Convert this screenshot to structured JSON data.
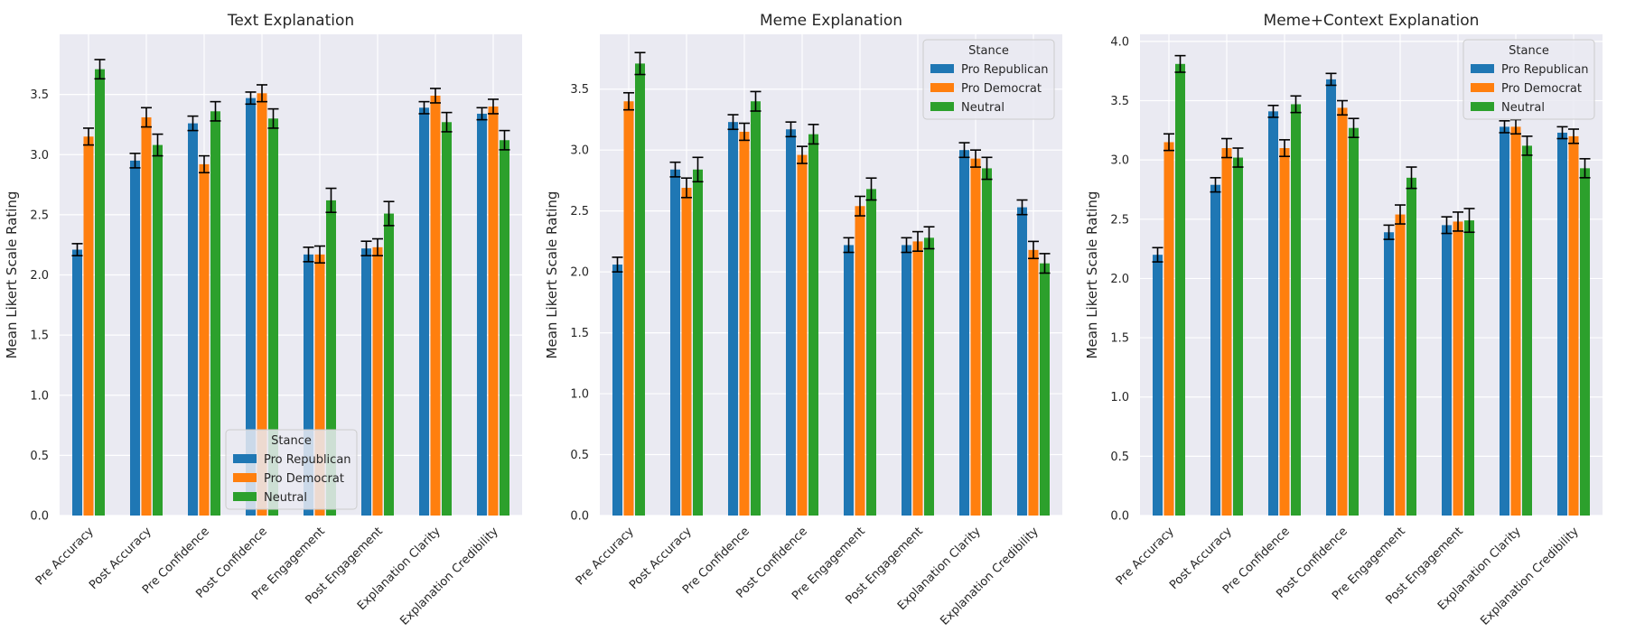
{
  "chart_data": [
    {
      "type": "bar",
      "title": "Text Explanation",
      "ylabel": "Mean Likert Scale Rating",
      "xlabel": "",
      "ylim": [
        0,
        4.0
      ],
      "yticks": [
        0.0,
        0.5,
        1.0,
        1.5,
        2.0,
        2.5,
        3.0,
        3.5
      ],
      "grid": true,
      "legend_title": "Stance",
      "legend_position": "lower-right",
      "categories": [
        "Pre Accuracy",
        "Post Accuracy",
        "Pre Confidence",
        "Post Confidence",
        "Pre Engagement",
        "Post Engagement",
        "Explanation Clarity",
        "Explanation Credibility"
      ],
      "series": [
        {
          "name": "Pro Republican",
          "color": "#1f77b4",
          "values": [
            2.21,
            2.95,
            3.26,
            3.47,
            2.17,
            2.22,
            3.39,
            3.34
          ],
          "errors": [
            0.05,
            0.06,
            0.06,
            0.05,
            0.06,
            0.06,
            0.05,
            0.05
          ]
        },
        {
          "name": "Pro Democrat",
          "color": "#ff7f0e",
          "values": [
            3.15,
            3.31,
            2.92,
            3.51,
            2.17,
            2.23,
            3.49,
            3.4
          ],
          "errors": [
            0.07,
            0.08,
            0.07,
            0.07,
            0.07,
            0.07,
            0.06,
            0.06
          ]
        },
        {
          "name": "Neutral",
          "color": "#2ca02c",
          "values": [
            3.71,
            3.08,
            3.36,
            3.3,
            2.62,
            2.51,
            3.27,
            3.12
          ],
          "errors": [
            0.08,
            0.09,
            0.08,
            0.08,
            0.1,
            0.1,
            0.08,
            0.08
          ]
        }
      ]
    },
    {
      "type": "bar",
      "title": "Meme Explanation",
      "ylabel": "Mean Likert Scale Rating",
      "xlabel": "",
      "ylim": [
        0,
        3.95
      ],
      "yticks": [
        0.0,
        0.5,
        1.0,
        1.5,
        2.0,
        2.5,
        3.0,
        3.5
      ],
      "grid": true,
      "legend_title": "Stance",
      "legend_position": "upper-right",
      "categories": [
        "Pre Accuracy",
        "Post Accuracy",
        "Pre Confidence",
        "Post Confidence",
        "Pre Engagement",
        "Post Engagement",
        "Explanation Clarity",
        "Explanation Credibility"
      ],
      "series": [
        {
          "name": "Pro Republican",
          "color": "#1f77b4",
          "values": [
            2.06,
            2.84,
            3.23,
            3.17,
            2.22,
            2.22,
            3.0,
            2.53
          ],
          "errors": [
            0.06,
            0.06,
            0.06,
            0.06,
            0.06,
            0.06,
            0.06,
            0.06
          ]
        },
        {
          "name": "Pro Democrat",
          "color": "#ff7f0e",
          "values": [
            3.4,
            2.69,
            3.15,
            2.96,
            2.54,
            2.25,
            2.93,
            2.18
          ],
          "errors": [
            0.07,
            0.08,
            0.07,
            0.07,
            0.08,
            0.08,
            0.07,
            0.07
          ]
        },
        {
          "name": "Neutral",
          "color": "#2ca02c",
          "values": [
            3.71,
            2.84,
            3.4,
            3.13,
            2.68,
            2.28,
            2.85,
            2.07
          ],
          "errors": [
            0.09,
            0.1,
            0.08,
            0.08,
            0.09,
            0.09,
            0.09,
            0.08
          ]
        }
      ]
    },
    {
      "type": "bar",
      "title": "Meme+Context Explanation",
      "ylabel": "Mean Likert Scale Rating",
      "xlabel": "",
      "ylim": [
        0,
        4.06
      ],
      "yticks": [
        0.0,
        0.5,
        1.0,
        1.5,
        2.0,
        2.5,
        3.0,
        3.5,
        4.0
      ],
      "grid": true,
      "legend_title": "Stance",
      "legend_position": "upper-right",
      "categories": [
        "Pre Accuracy",
        "Post Accuracy",
        "Pre Confidence",
        "Post Confidence",
        "Pre Engagement",
        "Post Engagement",
        "Explanation Clarity",
        "Explanation Credibility"
      ],
      "series": [
        {
          "name": "Pro Republican",
          "color": "#1f77b4",
          "values": [
            2.2,
            2.79,
            3.41,
            3.68,
            2.39,
            2.45,
            3.28,
            3.23
          ],
          "errors": [
            0.06,
            0.06,
            0.05,
            0.05,
            0.06,
            0.07,
            0.05,
            0.05
          ]
        },
        {
          "name": "Pro Democrat",
          "color": "#ff7f0e",
          "values": [
            3.15,
            3.1,
            3.1,
            3.44,
            2.54,
            2.48,
            3.28,
            3.2
          ],
          "errors": [
            0.07,
            0.08,
            0.07,
            0.06,
            0.08,
            0.08,
            0.06,
            0.06
          ]
        },
        {
          "name": "Neutral",
          "color": "#2ca02c",
          "values": [
            3.81,
            3.02,
            3.47,
            3.27,
            2.85,
            2.49,
            3.12,
            2.93
          ],
          "errors": [
            0.07,
            0.08,
            0.07,
            0.08,
            0.09,
            0.1,
            0.08,
            0.08
          ]
        }
      ]
    }
  ]
}
